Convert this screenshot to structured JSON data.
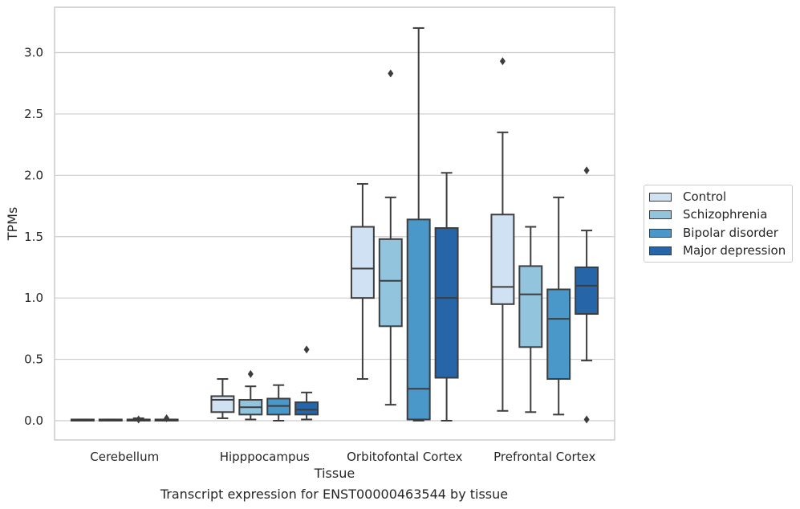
{
  "chart_data": {
    "type": "box",
    "ylabel": "TPMs",
    "xlabel": "Tissue",
    "caption": "Transcript expression for ENST00000463544 by tissue",
    "ylim": [
      -0.16,
      3.38
    ],
    "yticks": [
      "0.0",
      "0.5",
      "1.0",
      "1.5",
      "2.0",
      "2.5",
      "3.0"
    ],
    "grid": "horizontal",
    "legend_position": "right",
    "categories": [
      "Cerebellum",
      "Hipppocampus",
      "Orbitofontal Cortex",
      "Prefrontal Cortex"
    ],
    "series": [
      {
        "name": "Control",
        "color": "#cfe1f2",
        "boxes": [
          {
            "whislo": 0.0,
            "q1": 0.0,
            "med": 0.0,
            "q3": 0.01,
            "whishi": 0.01,
            "fliers": []
          },
          {
            "whislo": 0.02,
            "q1": 0.07,
            "med": 0.17,
            "q3": 0.2,
            "whishi": 0.34,
            "fliers": []
          },
          {
            "whislo": 0.34,
            "q1": 1.0,
            "med": 1.24,
            "q3": 1.58,
            "whishi": 1.93,
            "fliers": []
          },
          {
            "whislo": 0.08,
            "q1": 0.95,
            "med": 1.09,
            "q3": 1.68,
            "whishi": 2.35,
            "fliers": [
              2.93
            ]
          }
        ]
      },
      {
        "name": "Schizophrenia",
        "color": "#93c4de",
        "boxes": [
          {
            "whislo": 0.0,
            "q1": 0.0,
            "med": 0.0,
            "q3": 0.01,
            "whishi": 0.01,
            "fliers": []
          },
          {
            "whislo": 0.01,
            "q1": 0.05,
            "med": 0.11,
            "q3": 0.17,
            "whishi": 0.28,
            "fliers": [
              0.38
            ]
          },
          {
            "whislo": 0.13,
            "q1": 0.77,
            "med": 1.14,
            "q3": 1.48,
            "whishi": 1.82,
            "fliers": [
              2.83
            ]
          },
          {
            "whislo": 0.07,
            "q1": 0.6,
            "med": 1.03,
            "q3": 1.26,
            "whishi": 1.58,
            "fliers": []
          }
        ]
      },
      {
        "name": "Bipolar disorder",
        "color": "#4a98c9",
        "boxes": [
          {
            "whislo": 0.0,
            "q1": 0.0,
            "med": 0.0,
            "q3": 0.01,
            "whishi": 0.02,
            "fliers": [
              0.01
            ]
          },
          {
            "whislo": 0.0,
            "q1": 0.05,
            "med": 0.12,
            "q3": 0.18,
            "whishi": 0.29,
            "fliers": []
          },
          {
            "whislo": 0.0,
            "q1": 0.01,
            "med": 0.26,
            "q3": 1.64,
            "whishi": 3.2,
            "fliers": []
          },
          {
            "whislo": 0.05,
            "q1": 0.34,
            "med": 0.83,
            "q3": 1.07,
            "whishi": 1.82,
            "fliers": []
          }
        ]
      },
      {
        "name": "Major depression",
        "color": "#2565a8",
        "boxes": [
          {
            "whislo": 0.0,
            "q1": 0.0,
            "med": 0.0,
            "q3": 0.01,
            "whishi": 0.01,
            "fliers": [
              0.02
            ]
          },
          {
            "whislo": 0.01,
            "q1": 0.05,
            "med": 0.09,
            "q3": 0.15,
            "whishi": 0.23,
            "fliers": [
              0.58
            ]
          },
          {
            "whislo": 0.0,
            "q1": 0.35,
            "med": 1.0,
            "q3": 1.57,
            "whishi": 2.02,
            "fliers": []
          },
          {
            "whislo": 0.49,
            "q1": 0.87,
            "med": 1.1,
            "q3": 1.25,
            "whishi": 1.55,
            "fliers": [
              2.04,
              0.01
            ]
          }
        ]
      }
    ]
  }
}
